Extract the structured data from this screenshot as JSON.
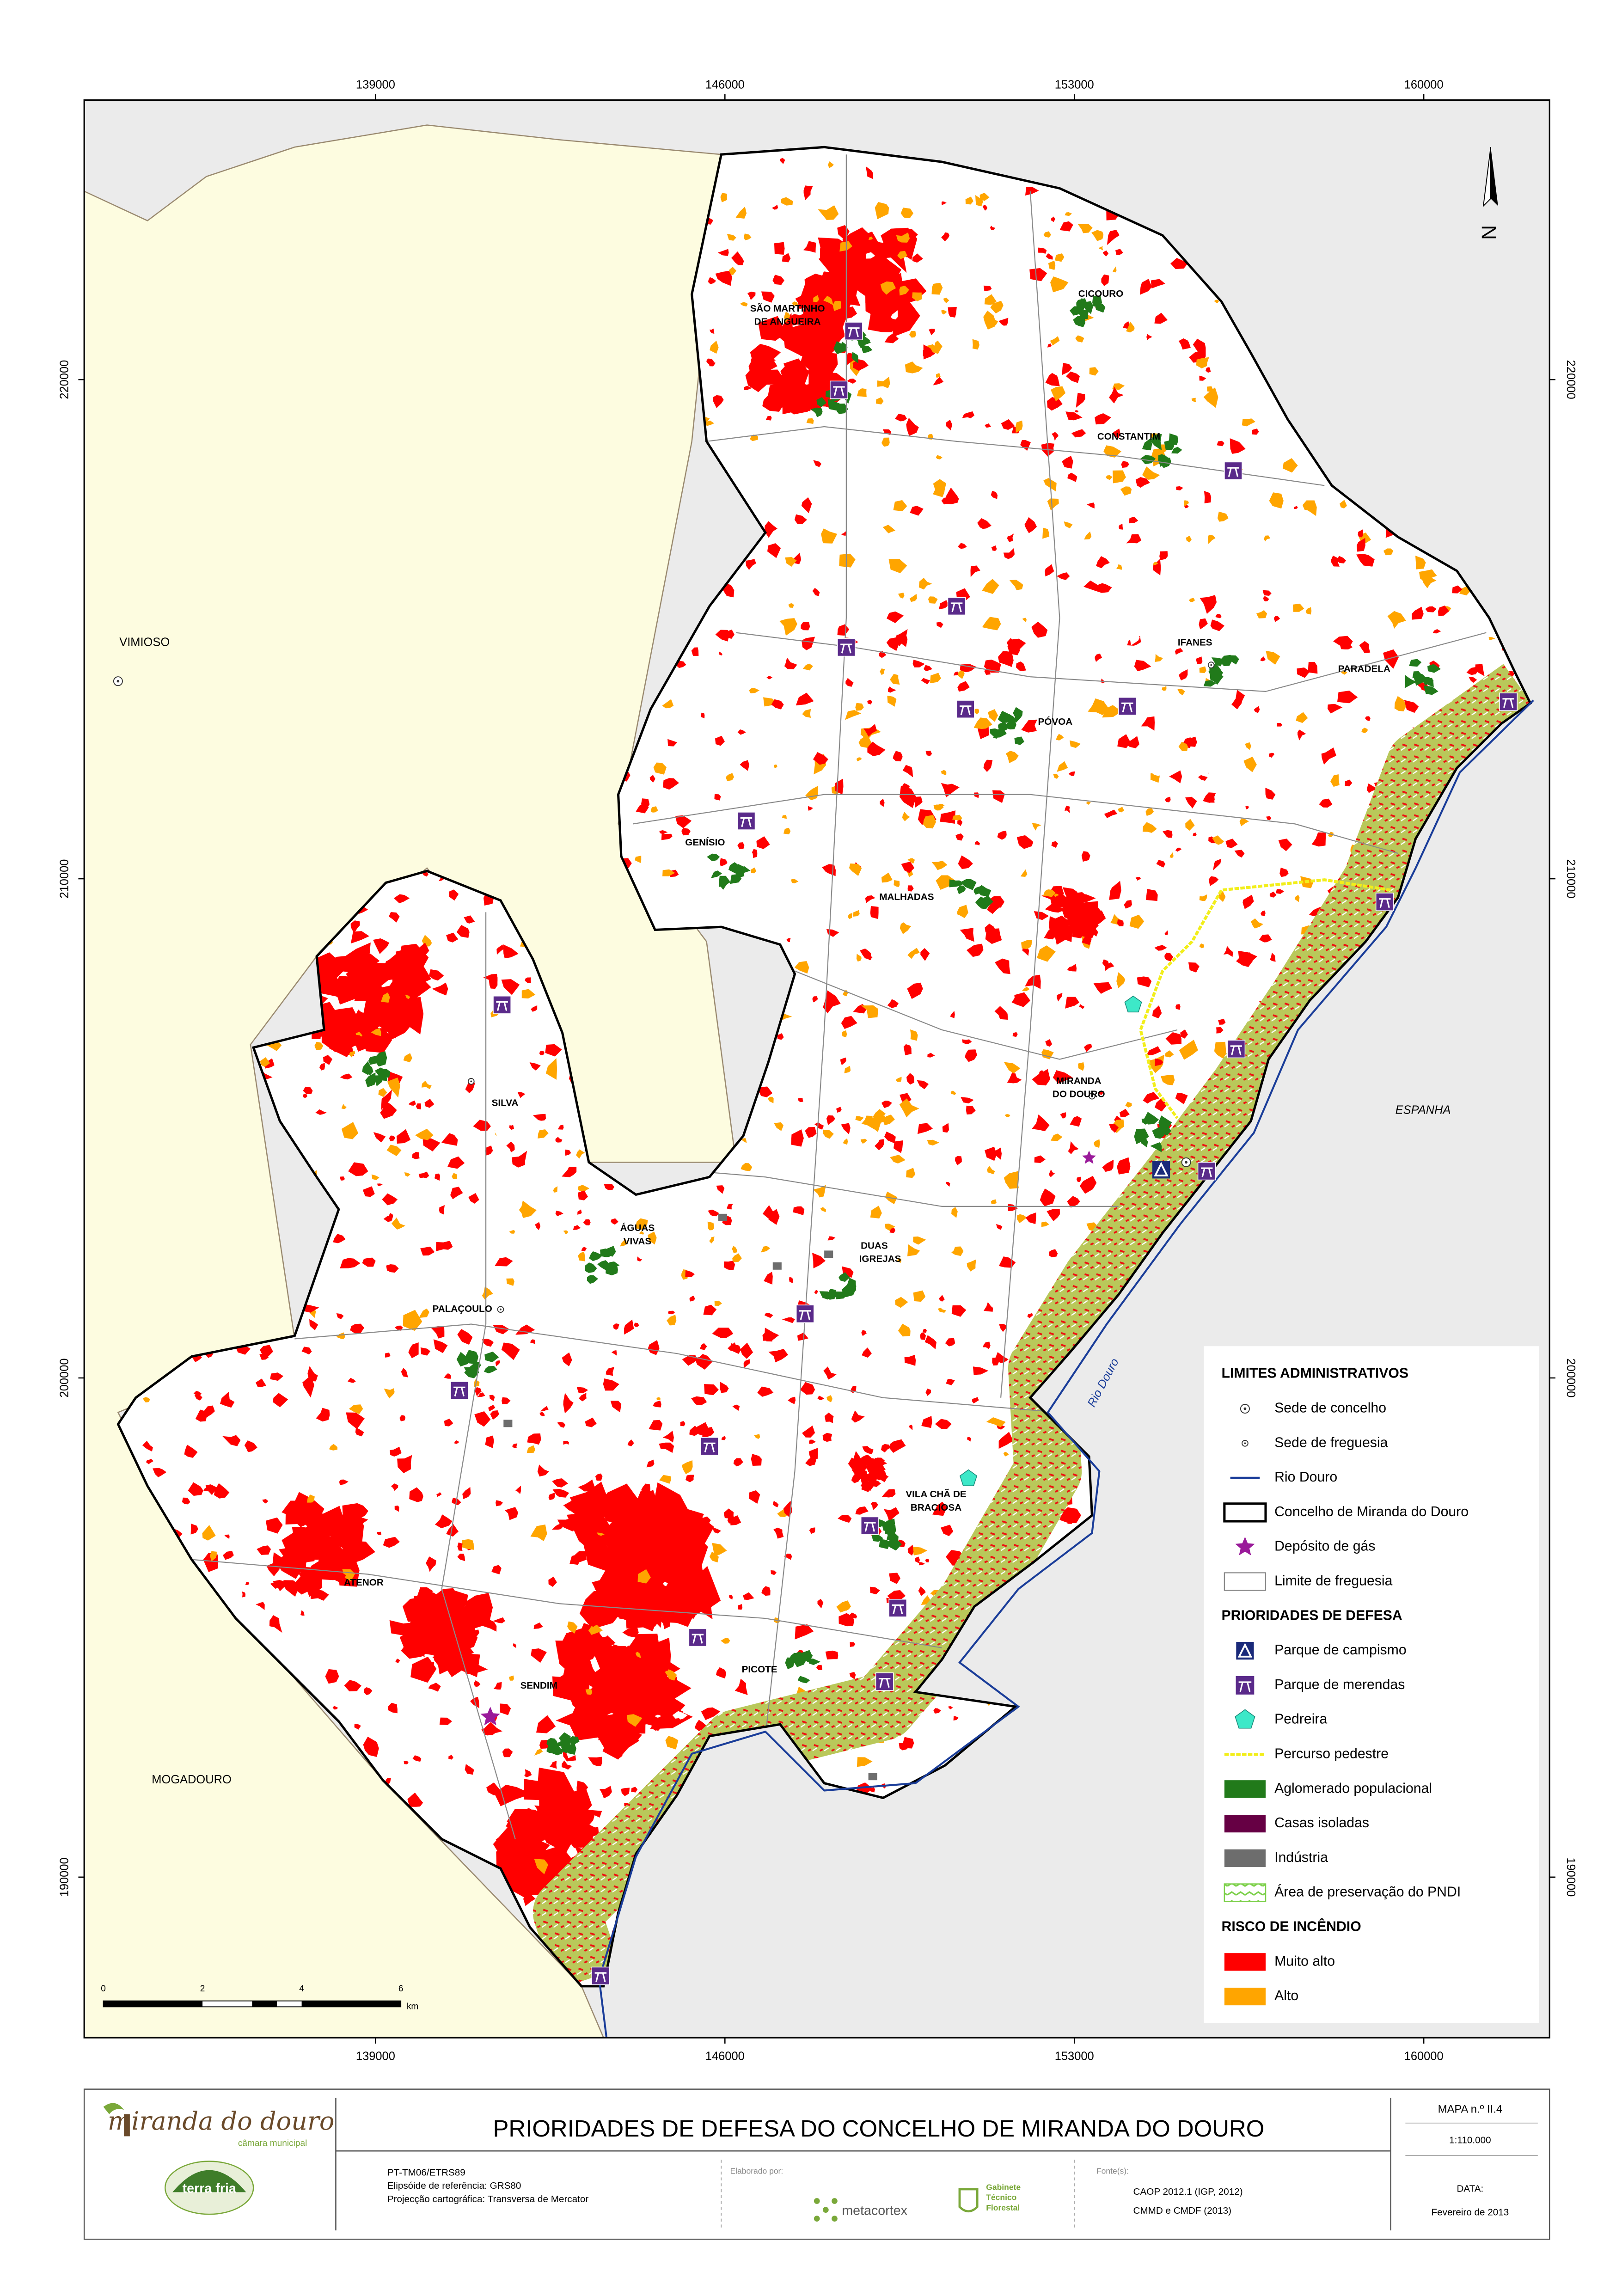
{
  "map": {
    "coordinates": {
      "easting": [
        139000,
        146000,
        153000,
        160000
      ],
      "northing": [
        220000,
        210000,
        200000,
        190000
      ]
    },
    "north_arrow": "N",
    "place_labels": {
      "vimioso": "VIMIOSO",
      "mogadouro": "MOGADOURO",
      "espanha": "ESPANHA",
      "river": "Rio Douro",
      "sao_martinho": [
        "SÃO MARTINHO",
        "DE ANGUEIRA"
      ],
      "cicouro": "CICOURO",
      "constantim": "CONSTANTIM",
      "ifanes": "IFANES",
      "paradela": "PARADELA",
      "povoa": "PÓVOA",
      "genisio": "GENÍSIO",
      "malhadas": "MALHADAS",
      "miranda": [
        "MIRANDA",
        "DO DOURO"
      ],
      "silva": "SILVA",
      "aguas_vivas": [
        "ÁGUAS",
        "VIVAS"
      ],
      "duas_igrejas": [
        "DUAS",
        "IGREJAS"
      ],
      "palacoulo": "PALAÇOULO",
      "vila_cha": [
        "VILA CHÃ DE",
        "BRACIOSA"
      ],
      "atenor": "ATENOR",
      "picote": "PICOTE",
      "sendim": "SENDIM"
    },
    "scale_bar": {
      "ticks": [
        0,
        2,
        4,
        6
      ],
      "unit": "km"
    },
    "legend": [
      {
        "title": "LIMITES ADMINISTRATIVOS",
        "items": [
          "Sede de concelho",
          "Sede de freguesia",
          "Rio Douro",
          "Concelho de Miranda do Douro",
          "Depósito de gás",
          "Limite de freguesia"
        ]
      },
      {
        "title": "PRIORIDADES DE DEFESA",
        "items": [
          "Parque de campismo",
          "Parque de merendas",
          "Pedreira",
          "Percurso pedestre",
          "Aglomerado populacional",
          "Casas isoladas",
          "Indústria",
          "Área de preservação do PNDI"
        ]
      },
      {
        "title": "RISCO DE INCÊNDIO",
        "items": [
          "Muito alto",
          "Alto"
        ]
      }
    ]
  },
  "footer": {
    "logo": "miranda do douro",
    "logo_sub": "câmara municipal",
    "partner": "terra fria",
    "title": "PRIORIDADES DE DEFESA DO CONCELHO DE MIRANDA DO DOURO",
    "map_number": "MAPA n.º II.4",
    "scale": "1:110.000",
    "date_label": "DATA:",
    "date": "Fevereiro de 2013",
    "projection": [
      "PT-TM06/ETRS89",
      "Elipsóide de referência: GRS80",
      "Projecção cartográfica: Transversa de Mercator"
    ],
    "made_by_label": "Elaborado por:",
    "made_by": "metacortex",
    "office": [
      "Gabinete",
      "Técnico",
      "Florestal"
    ],
    "sources_label": "Fonte(s):",
    "sources": [
      "CAOP 2012.1 (IGP, 2012)",
      "CMMD e CMDF (2013)"
    ]
  }
}
